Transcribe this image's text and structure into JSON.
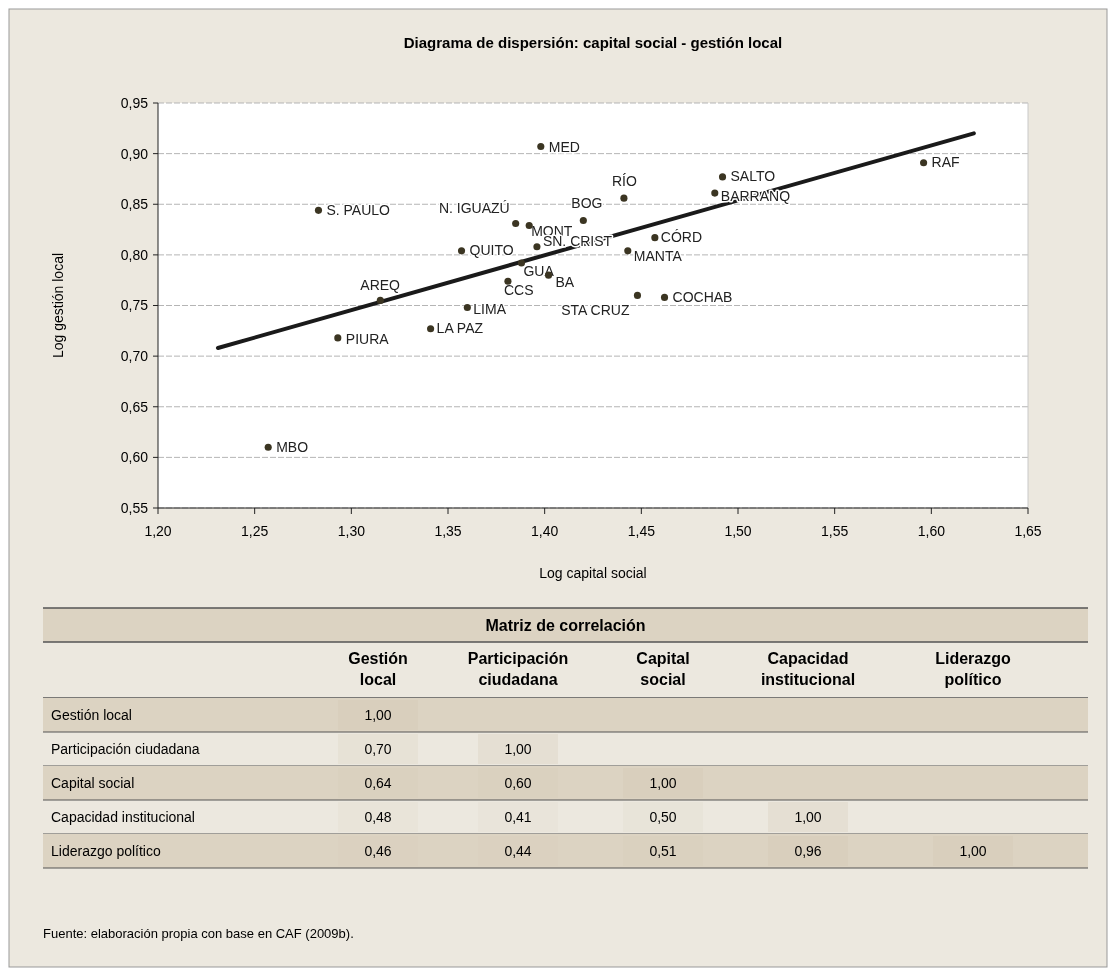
{
  "chart_data": [
    {
      "type": "scatter",
      "title": "Diagrama de dispersión: capital social - gestión local",
      "xlabel": "Log capital social",
      "ylabel": "Log gestión local",
      "xlim": [
        1.2,
        1.65
      ],
      "ylim": [
        0.55,
        0.95
      ],
      "xticks": [
        {
          "value": 1.2,
          "label": "1,20"
        },
        {
          "value": 1.25,
          "label": "1,25"
        },
        {
          "value": 1.3,
          "label": "1,30"
        },
        {
          "value": 1.35,
          "label": "1,35"
        },
        {
          "value": 1.4,
          "label": "1,40"
        },
        {
          "value": 1.45,
          "label": "1,45"
        },
        {
          "value": 1.5,
          "label": "1,50"
        },
        {
          "value": 1.55,
          "label": "1,55"
        },
        {
          "value": 1.6,
          "label": "1,60"
        },
        {
          "value": 1.65,
          "label": "1,65"
        }
      ],
      "yticks": [
        {
          "value": 0.55,
          "label": "0,55"
        },
        {
          "value": 0.6,
          "label": "0,60"
        },
        {
          "value": 0.65,
          "label": "0,65"
        },
        {
          "value": 0.7,
          "label": "0,70"
        },
        {
          "value": 0.75,
          "label": "0,75"
        },
        {
          "value": 0.8,
          "label": "0,80"
        },
        {
          "value": 0.85,
          "label": "0,85"
        },
        {
          "value": 0.9,
          "label": "0,90"
        },
        {
          "value": 0.95,
          "label": "0,95"
        }
      ],
      "grid": "y",
      "series": [
        {
          "type": "scatter",
          "marker": "circle",
          "color": "#3b3522",
          "x": [
            1.283,
            1.293,
            1.315,
            1.257,
            1.341,
            1.36,
            1.357,
            1.381,
            1.385,
            1.392,
            1.396,
            1.388,
            1.398,
            1.402,
            1.42,
            1.441,
            1.443,
            1.448,
            1.462,
            1.457,
            1.492,
            1.488,
            1.596
          ],
          "values": [
            0.844,
            0.718,
            0.755,
            0.61,
            0.727,
            0.748,
            0.804,
            0.774,
            0.831,
            0.829,
            0.808,
            0.792,
            0.907,
            0.78,
            0.834,
            0.856,
            0.804,
            0.76,
            0.758,
            0.817,
            0.877,
            0.861,
            0.891
          ]
        },
        {
          "type": "line",
          "color": "#1a1a1a",
          "line_style": "solid",
          "x": [
            1.231,
            1.622
          ],
          "values": [
            0.708,
            0.92
          ]
        }
      ],
      "annotations": [
        {
          "text": "S. PAULO",
          "x": 1.283,
          "y": 0.844
        },
        {
          "text": "PIURA",
          "x": 1.293,
          "y": 0.718
        },
        {
          "text": "AREQ",
          "x": 1.315,
          "y": 0.755
        },
        {
          "text": "MBO",
          "x": 1.257,
          "y": 0.61
        },
        {
          "text": "LA PAZ",
          "x": 1.341,
          "y": 0.727
        },
        {
          "text": "LIMA",
          "x": 1.36,
          "y": 0.748
        },
        {
          "text": "QUITO",
          "x": 1.357,
          "y": 0.804
        },
        {
          "text": "CCS",
          "x": 1.381,
          "y": 0.774
        },
        {
          "text": "N. IGUAZÚ",
          "x": 1.385,
          "y": 0.831
        },
        {
          "text": "MONT",
          "x": 1.392,
          "y": 0.829
        },
        {
          "text": "SN. CRIST",
          "x": 1.396,
          "y": 0.808
        },
        {
          "text": "GUA",
          "x": 1.388,
          "y": 0.792
        },
        {
          "text": "MED",
          "x": 1.398,
          "y": 0.907
        },
        {
          "text": "BA",
          "x": 1.402,
          "y": 0.78
        },
        {
          "text": "BOG",
          "x": 1.42,
          "y": 0.834
        },
        {
          "text": "RÍO",
          "x": 1.441,
          "y": 0.856
        },
        {
          "text": "MANTA",
          "x": 1.443,
          "y": 0.804
        },
        {
          "text": "STA CRUZ",
          "x": 1.448,
          "y": 0.76
        },
        {
          "text": "COCHAB",
          "x": 1.462,
          "y": 0.758
        },
        {
          "text": "CÓRD",
          "x": 1.457,
          "y": 0.817
        },
        {
          "text": "SALTO",
          "x": 1.492,
          "y": 0.877
        },
        {
          "text": "BARRANQ",
          "x": 1.488,
          "y": 0.861
        },
        {
          "text": "RAF",
          "x": 1.596,
          "y": 0.891
        }
      ]
    },
    {
      "type": "heatmap",
      "title": "Matriz de correlación",
      "categories": [
        "Gestión local",
        "Participación ciudadana",
        "Capital social",
        "Capacidad institucional",
        "Liderazgo político"
      ],
      "y_categories": [
        "Gestión local",
        "Participación ciudadana",
        "Capital social",
        "Capacidad institucional",
        "Liderazgo político"
      ],
      "cells": [
        [
          1.0,
          null,
          null,
          null,
          null
        ],
        [
          0.7,
          1.0,
          null,
          null,
          null
        ],
        [
          0.64,
          0.6,
          1.0,
          null,
          null
        ],
        [
          0.48,
          0.41,
          0.5,
          1.0,
          null
        ],
        [
          0.46,
          0.44,
          0.51,
          0.96,
          1.0
        ]
      ],
      "cell_labels": [
        [
          "1,00",
          null,
          null,
          null,
          null
        ],
        [
          "0,70",
          "1,00",
          null,
          null,
          null
        ],
        [
          "0,64",
          "0,60",
          "1,00",
          null,
          null
        ],
        [
          "0,48",
          "0,41",
          "0,50",
          "1,00",
          null
        ],
        [
          "0,46",
          "0,44",
          "0,51",
          "0,96",
          "1,00"
        ]
      ],
      "data_labels": true,
      "annotations": [
        "Fuente: elaboración propia con base en CAF (2009b)."
      ]
    }
  ]
}
